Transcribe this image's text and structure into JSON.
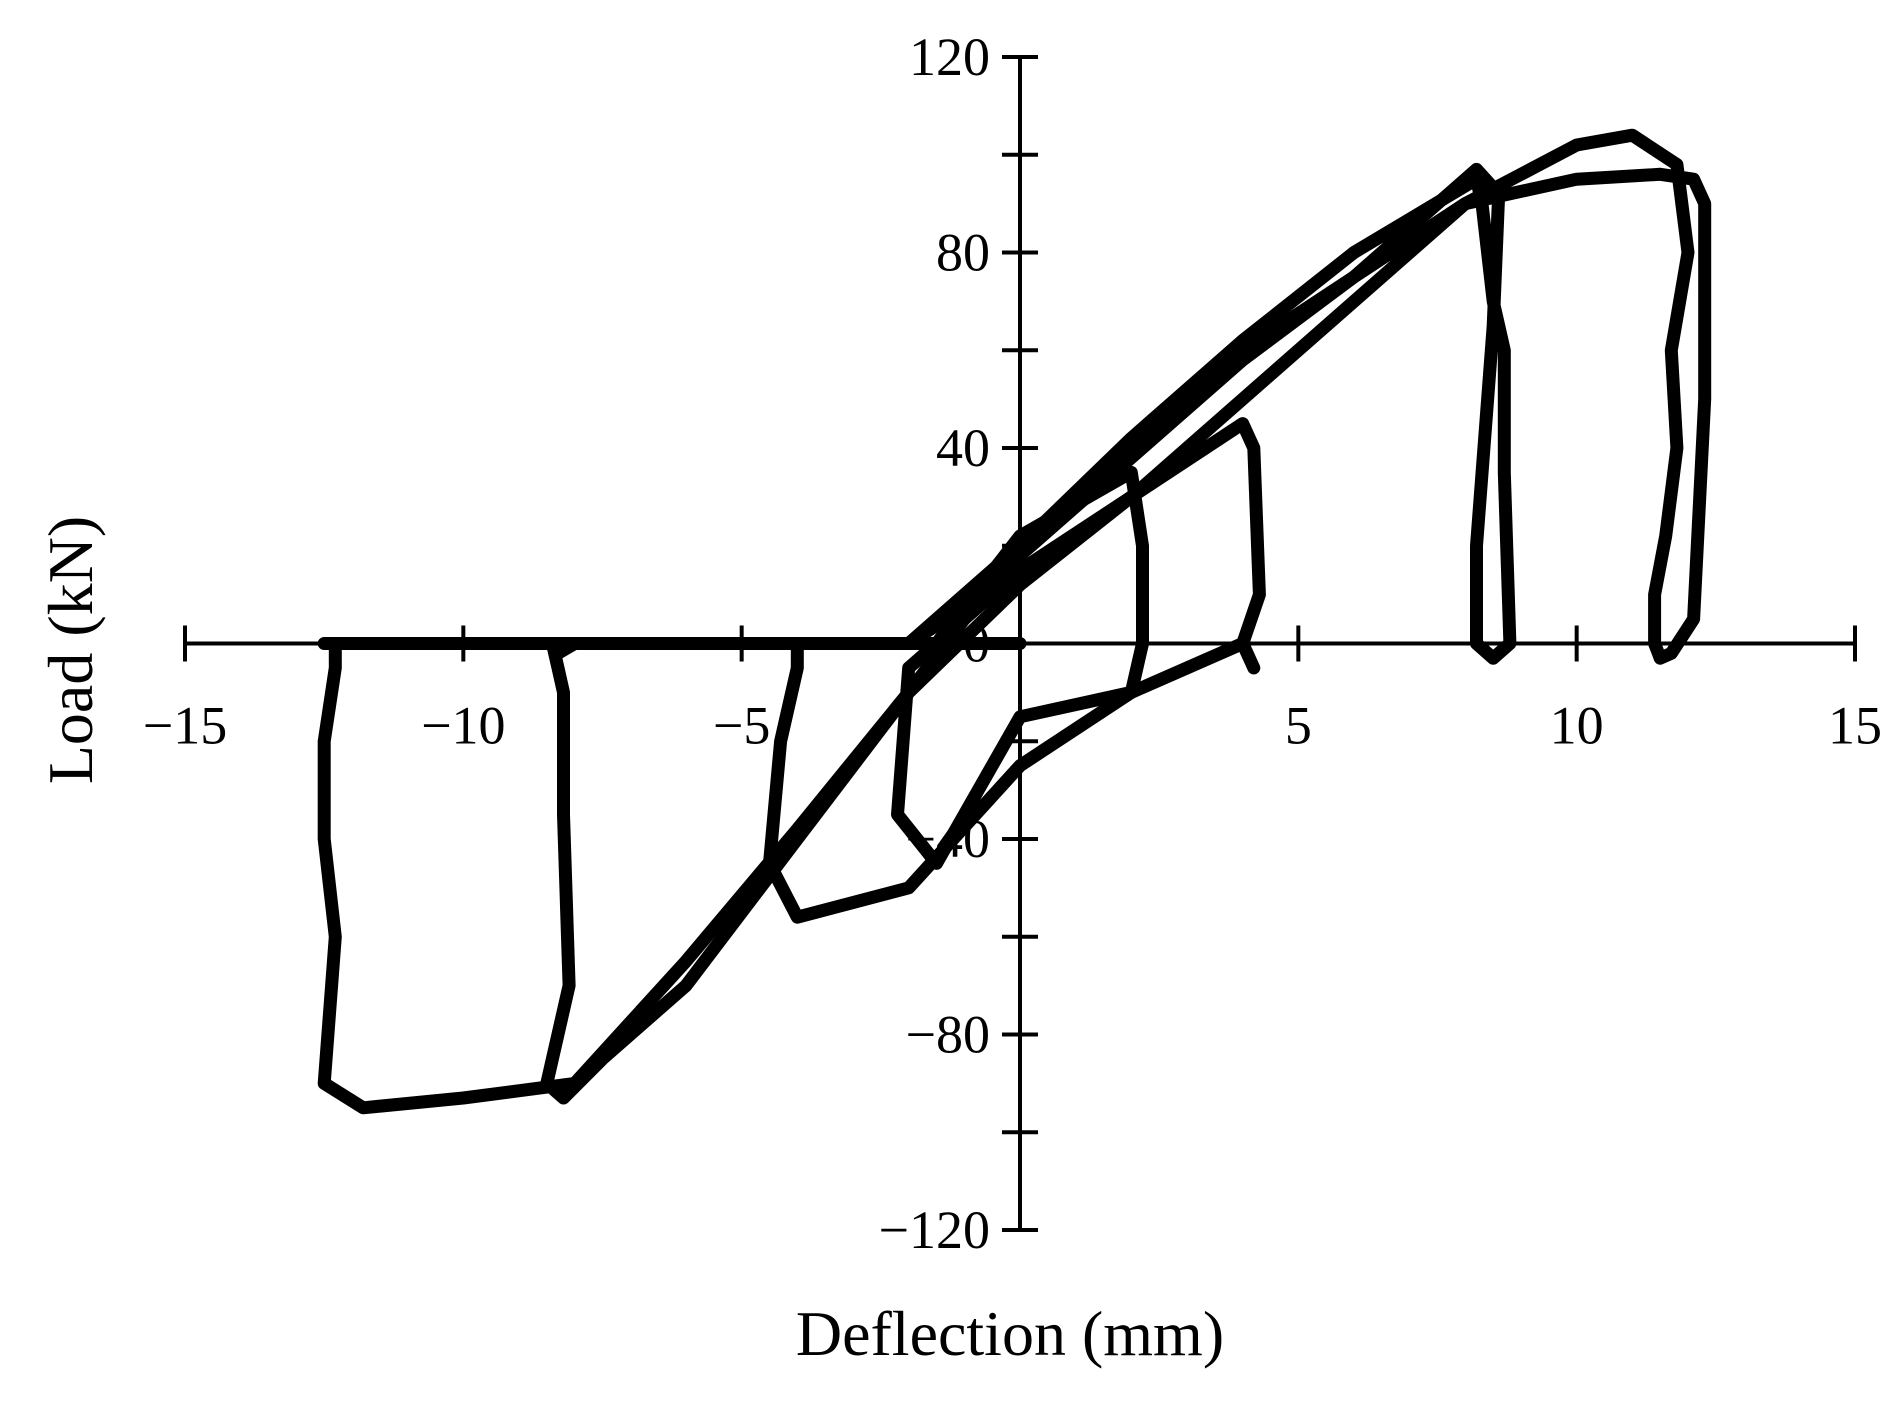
{
  "chart_data": {
    "type": "line",
    "xlabel": "Deflection (mm)",
    "ylabel": "Load (kN)",
    "xlim": [
      -15,
      15
    ],
    "ylim": [
      -120,
      120
    ],
    "x_ticks": [
      -15,
      -10,
      -5,
      5,
      10,
      15
    ],
    "x_tick_labels": [
      "−15",
      "−10",
      "−5",
      "5",
      "10",
      "15"
    ],
    "y_ticks": [
      -120,
      -80,
      -40,
      0,
      40,
      80,
      120
    ],
    "y_tick_labels": [
      "−120",
      "−80",
      "−40",
      "0",
      "40",
      "80",
      "120"
    ],
    "y_minor_tick_step": 20,
    "grid": false,
    "legend": "none",
    "line_color": "#000000",
    "series": [
      {
        "x": [
          -1.5,
          0,
          2,
          2.2,
          2.2,
          2,
          0,
          -1.5,
          -2.2,
          -2.0,
          -1.5,
          0
        ],
        "y": [
          0,
          22,
          35,
          20,
          0,
          -10,
          -15,
          -45,
          -35,
          -5,
          0,
          22
        ]
      },
      {
        "x": [
          -1.5,
          0,
          2,
          4,
          4.2,
          4.3,
          4.0,
          4.2,
          4.0,
          2,
          0,
          -2,
          -4,
          -4.5,
          -4.3,
          -4.0,
          -4.0,
          -2,
          0
        ],
        "y": [
          0,
          15,
          30,
          45,
          40,
          10,
          0,
          -5,
          0,
          -10,
          -25,
          -50,
          -56,
          -45,
          -20,
          -5,
          0,
          0,
          15
        ]
      },
      {
        "x": [
          -2,
          0,
          2,
          4,
          6,
          7.5,
          8.2,
          8.6,
          8.5,
          8.2,
          8.2,
          8.5,
          8.8,
          8.7,
          8.7,
          8.5,
          8.3,
          8.2,
          6,
          4,
          2,
          0,
          -2,
          -4,
          -6,
          -7.5,
          -8.2,
          -8.5,
          -8.1,
          -8.2,
          -8.2,
          -8.3,
          -8.4,
          -8.3,
          -8.0,
          -8.0,
          -6,
          -4,
          -2,
          0
        ],
        "y": [
          0,
          18,
          38,
          58,
          75,
          90,
          97,
          92,
          65,
          20,
          0,
          -3,
          0,
          35,
          60,
          70,
          90,
          95,
          80,
          62,
          42,
          20,
          -10,
          -40,
          -70,
          -85,
          -93,
          -90,
          -70,
          -35,
          -10,
          -5,
          0,
          -2,
          0,
          0,
          0,
          0,
          0,
          0
        ]
      },
      {
        "x": [
          -2,
          0,
          2,
          4,
          6,
          8,
          10,
          11,
          11.8,
          12.0,
          11.7,
          11.8,
          11.6,
          11.4,
          11.4,
          11.5,
          11.7,
          12.1,
          12.3,
          12.3,
          12.1,
          11.5,
          10,
          8,
          6,
          4,
          2,
          0,
          -2,
          -4,
          -6,
          -8,
          -10,
          -11.8,
          -12.5,
          -12.3,
          -12.5,
          -12.5,
          -12.3,
          -12.3,
          -12.5,
          -12.0,
          -10,
          -8,
          -6,
          -4,
          -2
        ],
        "y": [
          0,
          20,
          40,
          60,
          75,
          90,
          102,
          104,
          98,
          80,
          60,
          40,
          22,
          10,
          0,
          -3,
          -2,
          5,
          50,
          90,
          95,
          96,
          95,
          90,
          70,
          50,
          30,
          12,
          -10,
          -38,
          -65,
          -90,
          -93,
          -95,
          -90,
          -60,
          -40,
          -20,
          -5,
          0,
          0,
          0,
          0,
          0,
          0,
          0,
          0
        ]
      }
    ]
  }
}
